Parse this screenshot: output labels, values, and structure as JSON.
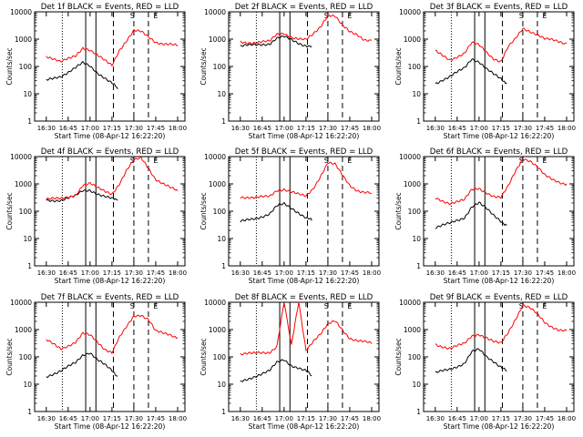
{
  "figure": {
    "xlabel": "Start Time (08-Apr-12 16:22:20)",
    "ylabel": "Counts/sec",
    "x_tick_labels": [
      "16:30",
      "16:45",
      "17:00",
      "17:15",
      "17:30",
      "17:45",
      "18:00"
    ],
    "y_tick_labels": [
      "1",
      "10",
      "100",
      "1000",
      "10000"
    ],
    "colors": {
      "events": "#000000",
      "lld": "#ff0000",
      "axes": "#000000",
      "background": "#ffffff"
    }
  },
  "chart_data": [
    {
      "type": "line",
      "title": "Det 1f BLACK = Events, RED = LLD",
      "xlabel": "Start Time (08-Apr-12 16:22:20)",
      "ylabel": "Counts/sec",
      "y_scale": "log",
      "ylim": [
        1,
        10000
      ],
      "xlim": [
        "16:22",
        "18:05"
      ],
      "series": [
        {
          "name": "Events",
          "color": "#000000",
          "x": [
            "16:30",
            "16:40",
            "16:50",
            "16:55",
            "17:00",
            "17:05",
            "17:10",
            "17:15",
            "17:19"
          ],
          "values": [
            30,
            45,
            90,
            130,
            100,
            60,
            40,
            25,
            15
          ]
        },
        {
          "name": "LLD",
          "color": "#ff0000",
          "x": [
            "16:30",
            "16:40",
            "16:50",
            "16:55",
            "17:00",
            "17:05",
            "17:10",
            "17:15",
            "17:20",
            "17:25",
            "17:30",
            "17:35",
            "17:40",
            "17:45",
            "17:50",
            "17:55",
            "18:00"
          ],
          "values": [
            250,
            140,
            250,
            500,
            400,
            250,
            160,
            110,
            400,
            900,
            2000,
            1800,
            1200,
            800,
            700,
            650,
            550
          ]
        }
      ],
      "markers": [
        "S",
        "E"
      ]
    },
    {
      "type": "line",
      "title": "Det 2f BLACK = Events, RED = LLD",
      "xlabel": "Start Time (08-Apr-12 16:22:20)",
      "ylabel": "Counts/sec",
      "y_scale": "log",
      "ylim": [
        1,
        10000
      ],
      "xlim": [
        "16:22",
        "18:05"
      ],
      "series": [
        {
          "name": "Events",
          "color": "#000000",
          "x": [
            "16:30",
            "16:40",
            "16:50",
            "16:55",
            "17:00",
            "17:05",
            "17:10",
            "17:15",
            "17:19"
          ],
          "values": [
            550,
            600,
            700,
            1100,
            1200,
            900,
            700,
            600,
            550
          ]
        },
        {
          "name": "LLD",
          "color": "#ff0000",
          "x": [
            "16:30",
            "16:40",
            "16:50",
            "16:55",
            "17:00",
            "17:05",
            "17:10",
            "17:15",
            "17:20",
            "17:25",
            "17:30",
            "17:35",
            "17:40",
            "17:45",
            "17:50",
            "17:55",
            "18:00"
          ],
          "values": [
            800,
            750,
            800,
            1500,
            1700,
            1200,
            1000,
            900,
            1500,
            3000,
            8000,
            7000,
            3000,
            1800,
            1500,
            1000,
            900
          ]
        }
      ],
      "markers": [
        "S",
        "E"
      ]
    },
    {
      "type": "line",
      "title": "Det 3f BLACK = Events, RED = LLD",
      "xlabel": "Start Time (08-Apr-12 16:22:20)",
      "ylabel": "Counts/sec",
      "y_scale": "log",
      "ylim": [
        1,
        10000
      ],
      "xlim": [
        "16:22",
        "18:05"
      ],
      "series": [
        {
          "name": "Events",
          "color": "#000000",
          "x": [
            "16:30",
            "16:40",
            "16:50",
            "16:55",
            "17:00",
            "17:05",
            "17:10",
            "17:15",
            "17:19"
          ],
          "values": [
            25,
            40,
            90,
            200,
            150,
            80,
            50,
            35,
            25
          ]
        },
        {
          "name": "LLD",
          "color": "#ff0000",
          "x": [
            "16:30",
            "16:40",
            "16:50",
            "16:55",
            "17:00",
            "17:05",
            "17:10",
            "17:15",
            "17:20",
            "17:25",
            "17:30",
            "17:35",
            "17:40",
            "17:45",
            "17:50",
            "17:55",
            "18:00"
          ],
          "values": [
            350,
            180,
            300,
            700,
            600,
            350,
            200,
            150,
            500,
            1000,
            2500,
            2000,
            1500,
            1000,
            900,
            800,
            700
          ]
        }
      ],
      "markers": [
        "S",
        "E"
      ]
    },
    {
      "type": "line",
      "title": "Det 4f BLACK = Events, RED = LLD",
      "xlabel": "Start Time (08-Apr-12 16:22:20)",
      "ylabel": "Counts/sec",
      "y_scale": "log",
      "ylim": [
        1,
        10000
      ],
      "xlim": [
        "16:22",
        "18:05"
      ],
      "series": [
        {
          "name": "Events",
          "color": "#000000",
          "x": [
            "16:30",
            "16:40",
            "16:50",
            "16:55",
            "17:00",
            "17:05",
            "17:10",
            "17:15",
            "17:19"
          ],
          "values": [
            250,
            260,
            350,
            550,
            600,
            450,
            350,
            280,
            250
          ]
        },
        {
          "name": "LLD",
          "color": "#ff0000",
          "x": [
            "16:30",
            "16:40",
            "16:50",
            "16:55",
            "17:00",
            "17:05",
            "17:10",
            "17:15",
            "17:20",
            "17:25",
            "17:30",
            "17:35",
            "17:40",
            "17:45",
            "17:50",
            "17:55",
            "18:00"
          ],
          "values": [
            280,
            280,
            400,
            900,
            1000,
            700,
            550,
            450,
            1000,
            3000,
            7000,
            9000,
            4000,
            1500,
            1000,
            700,
            550
          ]
        }
      ],
      "markers": [
        "S",
        "E"
      ]
    },
    {
      "type": "line",
      "title": "Det 5f BLACK = Events, RED = LLD",
      "xlabel": "Start Time (08-Apr-12 16:22:20)",
      "ylabel": "Counts/sec",
      "y_scale": "log",
      "ylim": [
        1,
        10000
      ],
      "xlim": [
        "16:22",
        "18:05"
      ],
      "series": [
        {
          "name": "Events",
          "color": "#000000",
          "x": [
            "16:30",
            "16:40",
            "16:50",
            "16:55",
            "17:00",
            "17:05",
            "17:10",
            "17:15",
            "17:19"
          ],
          "values": [
            40,
            55,
            80,
            150,
            180,
            130,
            90,
            60,
            45
          ]
        },
        {
          "name": "LLD",
          "color": "#ff0000",
          "x": [
            "16:30",
            "16:40",
            "16:50",
            "16:55",
            "17:00",
            "17:05",
            "17:10",
            "17:15",
            "17:20",
            "17:25",
            "17:30",
            "17:35",
            "17:40",
            "17:45",
            "17:50",
            "17:55",
            "18:00"
          ],
          "values": [
            350,
            300,
            350,
            600,
            650,
            500,
            400,
            350,
            700,
            2000,
            6000,
            5000,
            2000,
            900,
            600,
            500,
            450
          ]
        }
      ],
      "markers": [
        "S",
        "E"
      ]
    },
    {
      "type": "line",
      "title": "Det 6f BLACK = Events, RED = LLD",
      "xlabel": "Start Time (08-Apr-12 16:22:20)",
      "ylabel": "Counts/sec",
      "y_scale": "log",
      "ylim": [
        1,
        10000
      ],
      "xlim": [
        "16:22",
        "18:05"
      ],
      "series": [
        {
          "name": "Events",
          "color": "#000000",
          "x": [
            "16:30",
            "16:40",
            "16:50",
            "16:55",
            "17:00",
            "17:05",
            "17:10",
            "17:15",
            "17:19"
          ],
          "values": [
            25,
            35,
            60,
            150,
            200,
            120,
            70,
            45,
            30
          ]
        },
        {
          "name": "LLD",
          "color": "#ff0000",
          "x": [
            "16:30",
            "16:40",
            "16:50",
            "16:55",
            "17:00",
            "17:05",
            "17:10",
            "17:15",
            "17:20",
            "17:25",
            "17:30",
            "17:35",
            "17:40",
            "17:45",
            "17:50",
            "17:55",
            "18:00"
          ],
          "values": [
            300,
            200,
            250,
            600,
            700,
            500,
            350,
            300,
            800,
            3000,
            9000,
            7000,
            4000,
            2000,
            1500,
            1200,
            1000
          ]
        }
      ],
      "markers": [
        "S",
        "E"
      ]
    },
    {
      "type": "line",
      "title": "Det 7f BLACK = Events, RED = LLD",
      "xlabel": "Start Time (08-Apr-12 16:22:20)",
      "ylabel": "Counts/sec",
      "y_scale": "log",
      "ylim": [
        1,
        10000
      ],
      "xlim": [
        "16:22",
        "18:05"
      ],
      "series": [
        {
          "name": "Events",
          "color": "#000000",
          "x": [
            "16:30",
            "16:40",
            "16:50",
            "16:55",
            "17:00",
            "17:05",
            "17:10",
            "17:15",
            "17:19"
          ],
          "values": [
            20,
            30,
            60,
            120,
            150,
            80,
            50,
            30,
            20
          ]
        },
        {
          "name": "LLD",
          "color": "#ff0000",
          "x": [
            "16:30",
            "16:40",
            "16:50",
            "16:55",
            "17:00",
            "17:05",
            "17:10",
            "17:15",
            "17:20",
            "17:25",
            "17:30",
            "17:35",
            "17:40",
            "17:45",
            "17:50",
            "17:55",
            "18:00"
          ],
          "values": [
            400,
            200,
            350,
            700,
            600,
            350,
            200,
            150,
            500,
            1200,
            3000,
            3500,
            2500,
            900,
            700,
            600,
            500
          ]
        }
      ],
      "markers": [
        "S",
        "E"
      ]
    },
    {
      "type": "line",
      "title": "Det 8f BLACK = Events, RED = LLD",
      "xlabel": "Start Time (08-Apr-12 16:22:20)",
      "ylabel": "Counts/sec",
      "y_scale": "log",
      "ylim": [
        1,
        10000
      ],
      "xlim": [
        "16:22",
        "18:05"
      ],
      "series": [
        {
          "name": "Events",
          "color": "#000000",
          "x": [
            "16:30",
            "16:40",
            "16:50",
            "16:55",
            "17:00",
            "17:05",
            "17:10",
            "17:15",
            "17:19"
          ],
          "values": [
            12,
            20,
            30,
            60,
            80,
            50,
            40,
            30,
            20
          ]
        },
        {
          "name": "LLD",
          "color": "#ff0000",
          "x": [
            "16:30",
            "16:40",
            "16:50",
            "16:55",
            "17:00",
            "17:05",
            "17:10",
            "17:15",
            "17:20",
            "17:25",
            "17:30",
            "17:35",
            "17:40",
            "17:45",
            "17:50",
            "17:55",
            "18:00"
          ],
          "values": [
            130,
            130,
            150,
            250,
            10000,
            250,
            10000,
            180,
            400,
            700,
            1500,
            2000,
            1000,
            500,
            400,
            350,
            300
          ]
        }
      ],
      "markers": [
        "S",
        "E"
      ]
    },
    {
      "type": "line",
      "title": "Det 9f BLACK = Events, RED = LLD",
      "xlabel": "Start Time (08-Apr-12 16:22:20)",
      "ylabel": "Counts/sec",
      "y_scale": "log",
      "ylim": [
        1,
        10000
      ],
      "xlim": [
        "16:22",
        "18:05"
      ],
      "series": [
        {
          "name": "Events",
          "color": "#000000",
          "x": [
            "16:30",
            "16:40",
            "16:50",
            "16:55",
            "17:00",
            "17:05",
            "17:10",
            "17:15",
            "17:19"
          ],
          "values": [
            25,
            35,
            60,
            150,
            180,
            100,
            70,
            45,
            30
          ]
        },
        {
          "name": "LLD",
          "color": "#ff0000",
          "x": [
            "16:30",
            "16:40",
            "16:50",
            "16:55",
            "17:00",
            "17:05",
            "17:10",
            "17:15",
            "17:20",
            "17:25",
            "17:30",
            "17:35",
            "17:40",
            "17:45",
            "17:50",
            "17:55",
            "18:00"
          ],
          "values": [
            300,
            200,
            300,
            600,
            700,
            500,
            350,
            300,
            800,
            2500,
            8000,
            6000,
            3500,
            1800,
            1300,
            1000,
            900
          ]
        }
      ],
      "markers": [
        "S",
        "E"
      ]
    }
  ]
}
